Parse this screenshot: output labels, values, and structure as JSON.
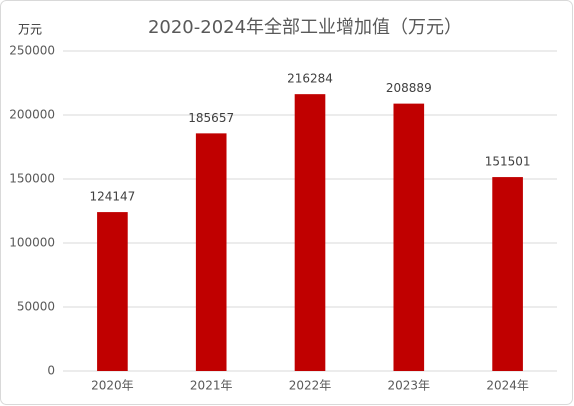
{
  "chart_data": {
    "type": "bar",
    "title": "2020-2024年全部工业增加值（万元）",
    "y_label": "万元",
    "categories": [
      "2020年",
      "2021年",
      "2022年",
      "2023年",
      "2024年"
    ],
    "values": [
      124147,
      185657,
      216284,
      208889,
      151501
    ],
    "color": "#c00000",
    "ylim": [
      0,
      250000
    ],
    "yticks": [
      0,
      50000,
      100000,
      150000,
      200000,
      250000
    ],
    "grid": true
  }
}
